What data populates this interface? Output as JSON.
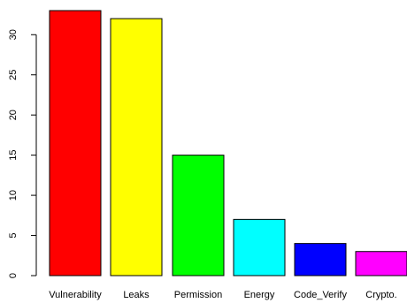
{
  "chart_data": {
    "type": "bar",
    "categories": [
      "Vulnerability",
      "Leaks",
      "Permission",
      "Energy",
      "Code_Verify",
      "Crypto."
    ],
    "values": [
      33,
      32,
      15,
      7,
      4,
      3
    ],
    "colors": [
      "#ff0000",
      "#ffff00",
      "#00ff00",
      "#00ffff",
      "#0000ff",
      "#ff00ff"
    ],
    "ylim": [
      0,
      33
    ],
    "yticks": [
      0,
      5,
      10,
      15,
      20,
      25,
      30
    ],
    "title": "",
    "xlabel": "",
    "ylabel": "",
    "grid": false,
    "legend": "none"
  }
}
